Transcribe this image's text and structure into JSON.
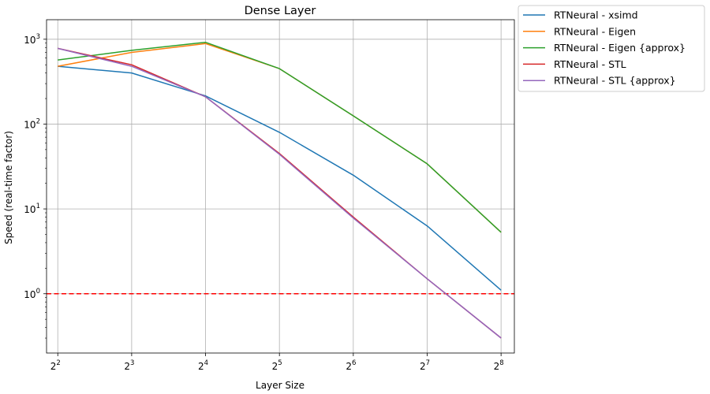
{
  "chart_data": {
    "type": "line",
    "title": "Dense Layer",
    "xlabel": "Layer Size",
    "ylabel": "Speed (real-time factor)",
    "x_scale": "log2",
    "y_scale": "log10",
    "x": [
      4,
      8,
      16,
      32,
      64,
      128,
      256
    ],
    "x_tick_labels": [
      {
        "base": "2",
        "exp": "2"
      },
      {
        "base": "2",
        "exp": "3"
      },
      {
        "base": "2",
        "exp": "4"
      },
      {
        "base": "2",
        "exp": "5"
      },
      {
        "base": "2",
        "exp": "6"
      },
      {
        "base": "2",
        "exp": "7"
      },
      {
        "base": "2",
        "exp": "8"
      }
    ],
    "y_ticks": [
      1,
      10,
      100,
      1000
    ],
    "y_tick_labels": [
      {
        "base": "10",
        "exp": "0"
      },
      {
        "base": "10",
        "exp": "1"
      },
      {
        "base": "10",
        "exp": "2"
      },
      {
        "base": "10",
        "exp": "3"
      }
    ],
    "xlim": [
      3.6,
      290
    ],
    "ylim": [
      0.2,
      1700
    ],
    "grid": true,
    "legend_position": "outside-top-right",
    "series": [
      {
        "name": "RTNeural - xsimd",
        "color": "#1f77b4",
        "values": [
          480,
          400,
          215,
          80,
          25,
          6.3,
          1.1
        ]
      },
      {
        "name": "RTNeural - Eigen",
        "color": "#ff7f0e",
        "values": [
          480,
          700,
          890,
          450,
          125,
          34,
          5.3
        ]
      },
      {
        "name": "RTNeural - Eigen {approx}",
        "color": "#2ca02c",
        "values": [
          570,
          740,
          920,
          450,
          125,
          34,
          5.3
        ]
      },
      {
        "name": "RTNeural - STL",
        "color": "#d62728",
        "values": [
          780,
          500,
          210,
          45,
          8,
          1.5,
          0.3
        ]
      },
      {
        "name": "RTNeural - STL {approx}",
        "color": "#9467bd",
        "values": [
          780,
          480,
          210,
          44,
          7.8,
          1.5,
          0.3
        ]
      }
    ],
    "reference_line": {
      "y": 1,
      "color": "#ff0000",
      "style": "dashed"
    }
  }
}
